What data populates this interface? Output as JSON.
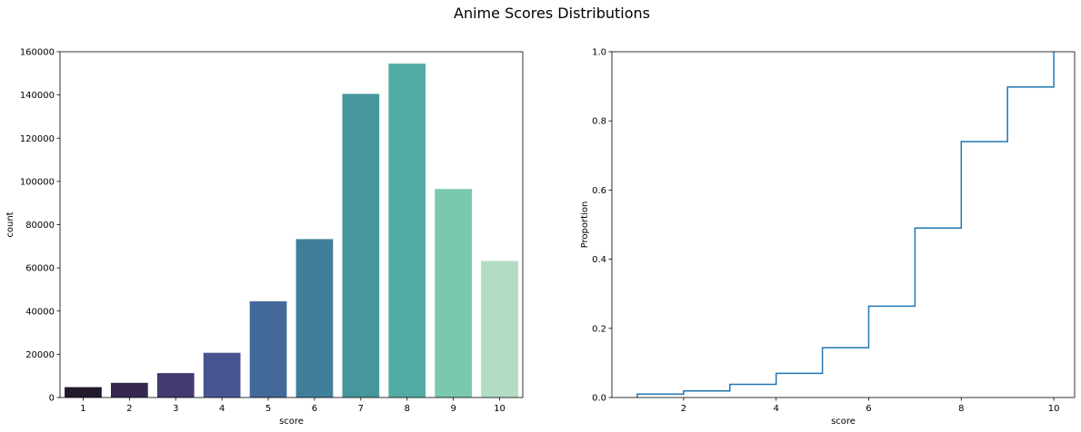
{
  "figure": {
    "title": "Anime Scores Distributions"
  },
  "chart_data": [
    {
      "type": "bar",
      "xlabel": "score",
      "ylabel": "count",
      "categories": [
        "1",
        "2",
        "3",
        "4",
        "5",
        "6",
        "7",
        "8",
        "9",
        "10"
      ],
      "values": [
        4800,
        6800,
        11300,
        20700,
        44500,
        73300,
        140500,
        154500,
        96500,
        63200
      ],
      "ylim": [
        0,
        160000
      ],
      "yticks": [
        0,
        20000,
        40000,
        60000,
        80000,
        100000,
        120000,
        140000,
        160000
      ],
      "colors": [
        "#231a2e",
        "#35274e",
        "#433a6f",
        "#485591",
        "#42699a",
        "#3f7f9a",
        "#46979c",
        "#53aca4",
        "#7ac9ad",
        "#b2ddc4"
      ],
      "grid": false
    },
    {
      "type": "line",
      "style": "step",
      "xlabel": "score",
      "ylabel": "Proportion",
      "x": [
        1,
        2,
        3,
        4,
        5,
        6,
        7,
        8,
        9,
        10
      ],
      "y": [
        0.01,
        0.019,
        0.038,
        0.07,
        0.144,
        0.264,
        0.49,
        0.74,
        0.898,
        1.0
      ],
      "xlim": [
        0.45,
        10.45
      ],
      "ylim": [
        0,
        1.0
      ],
      "xticks": [
        2,
        4,
        6,
        8,
        10
      ],
      "yticks": [
        0.0,
        0.2,
        0.4,
        0.6,
        0.8,
        1.0
      ],
      "color": "#1f77b4",
      "grid": false
    }
  ]
}
